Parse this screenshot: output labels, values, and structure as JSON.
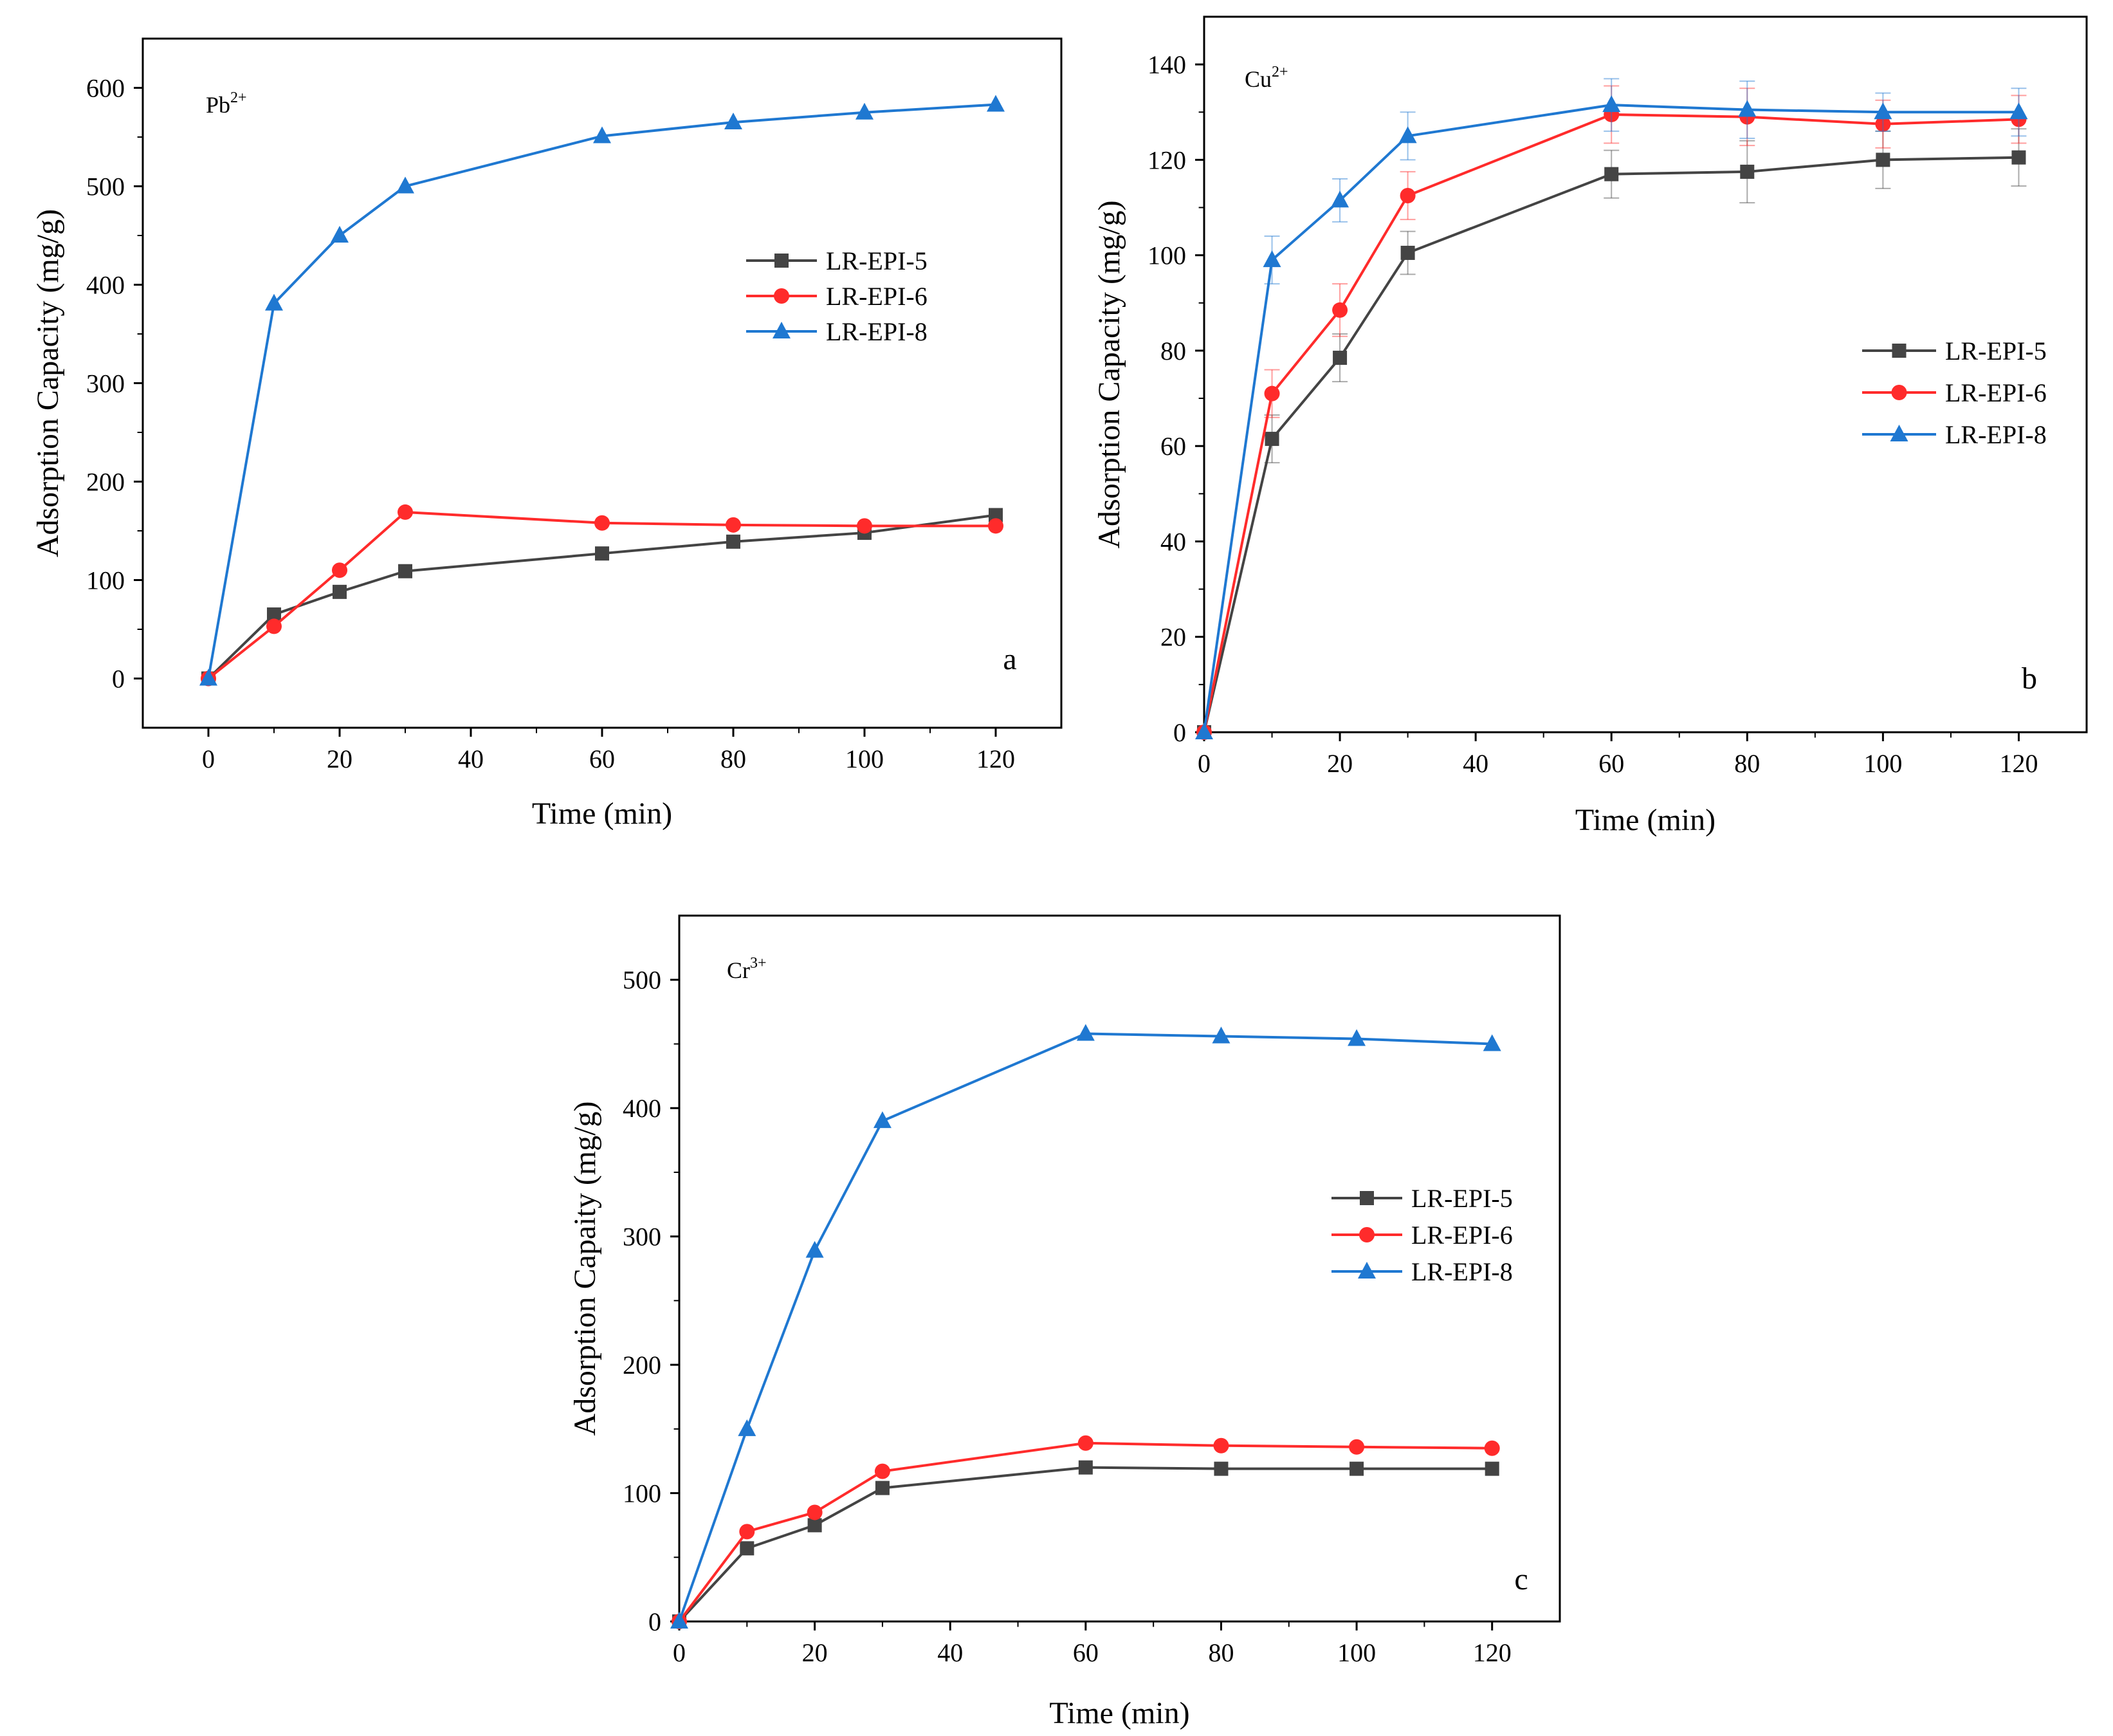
{
  "figure": {
    "panels": [
      {
        "letter": "a",
        "ion_base": "Pb",
        "ion_sup": "2+",
        "chart_data": {
          "type": "line",
          "title": "Pb2+",
          "xlabel": "Time (min)",
          "ylabel": "Adsorption Capacity (mg/g)",
          "xlim": [
            -10,
            130
          ],
          "ylim": [
            -50,
            650
          ],
          "xticks": [
            0,
            20,
            40,
            60,
            80,
            100,
            120
          ],
          "yticks": [
            0,
            100,
            200,
            300,
            400,
            500,
            600
          ],
          "x": [
            0,
            10,
            20,
            30,
            60,
            80,
            100,
            120
          ],
          "legend_position": "center-right",
          "series": [
            {
              "name": "LR-EPI-5",
              "color": "#444444",
              "marker": "square",
              "values": [
                0,
                65,
                88,
                109,
                127,
                139,
                148,
                166
              ]
            },
            {
              "name": "LR-EPI-6",
              "color": "#ff2b2b",
              "marker": "circle",
              "values": [
                0,
                53,
                110,
                169,
                158,
                156,
                155,
                155
              ]
            },
            {
              "name": "LR-EPI-8",
              "color": "#1f78d1",
              "marker": "triangle",
              "values": [
                0,
                381,
                450,
                500,
                551,
                565,
                575,
                583
              ]
            }
          ]
        }
      },
      {
        "letter": "b",
        "ion_base": "Cu",
        "ion_sup": "2+",
        "chart_data": {
          "type": "line",
          "title": "Cu2+",
          "xlabel": "Time (min)",
          "ylabel": "Adsorption Capacity (mg/g)",
          "xlim": [
            0,
            130
          ],
          "ylim": [
            0,
            150
          ],
          "xticks": [
            0,
            20,
            40,
            60,
            80,
            100,
            120
          ],
          "yticks": [
            0,
            20,
            40,
            60,
            80,
            100,
            120,
            140
          ],
          "x": [
            0,
            10,
            20,
            30,
            60,
            80,
            100,
            120
          ],
          "legend_position": "center-right",
          "error_bars": true,
          "series": [
            {
              "name": "LR-EPI-5",
              "color": "#444444",
              "marker": "square",
              "values": [
                0,
                61.5,
                78.5,
                100.5,
                117,
                117.5,
                120,
                120.5
              ],
              "errors": [
                0,
                5,
                5,
                4.5,
                5,
                6.5,
                6,
                6
              ]
            },
            {
              "name": "LR-EPI-6",
              "color": "#ff2b2b",
              "marker": "circle",
              "values": [
                0,
                71,
                88.5,
                112.5,
                129.5,
                129,
                127.5,
                128.5
              ],
              "errors": [
                0,
                5,
                5.5,
                5,
                6,
                6,
                5,
                5
              ]
            },
            {
              "name": "LR-EPI-8",
              "color": "#1f78d1",
              "marker": "triangle",
              "values": [
                0,
                99,
                111.5,
                125,
                131.5,
                130.5,
                130,
                130
              ],
              "errors": [
                0,
                5,
                4.5,
                5,
                5.5,
                6,
                4,
                5
              ]
            }
          ]
        }
      },
      {
        "letter": "c",
        "ion_base": "Cr",
        "ion_sup": "3+",
        "chart_data": {
          "type": "line",
          "title": "Cr3+",
          "xlabel": "Time (min)",
          "ylabel": "Adsorption Capaity (mg/g)",
          "xlim": [
            0,
            130
          ],
          "ylim": [
            0,
            550
          ],
          "xticks": [
            0,
            20,
            40,
            60,
            80,
            100,
            120
          ],
          "yticks": [
            0,
            100,
            200,
            300,
            400,
            500
          ],
          "x": [
            0,
            10,
            20,
            30,
            60,
            80,
            100,
            120
          ],
          "legend_position": "center-right",
          "series": [
            {
              "name": "LR-EPI-5",
              "color": "#444444",
              "marker": "square",
              "values": [
                0,
                57,
                75,
                104,
                120,
                119,
                119,
                119
              ]
            },
            {
              "name": "LR-EPI-6",
              "color": "#ff2b2b",
              "marker": "circle",
              "values": [
                0,
                70,
                85,
                117,
                139,
                137,
                136,
                135
              ]
            },
            {
              "name": "LR-EPI-8",
              "color": "#1f78d1",
              "marker": "triangle",
              "values": [
                0,
                150,
                289,
                390,
                458,
                456,
                454,
                450
              ]
            }
          ]
        }
      }
    ]
  }
}
